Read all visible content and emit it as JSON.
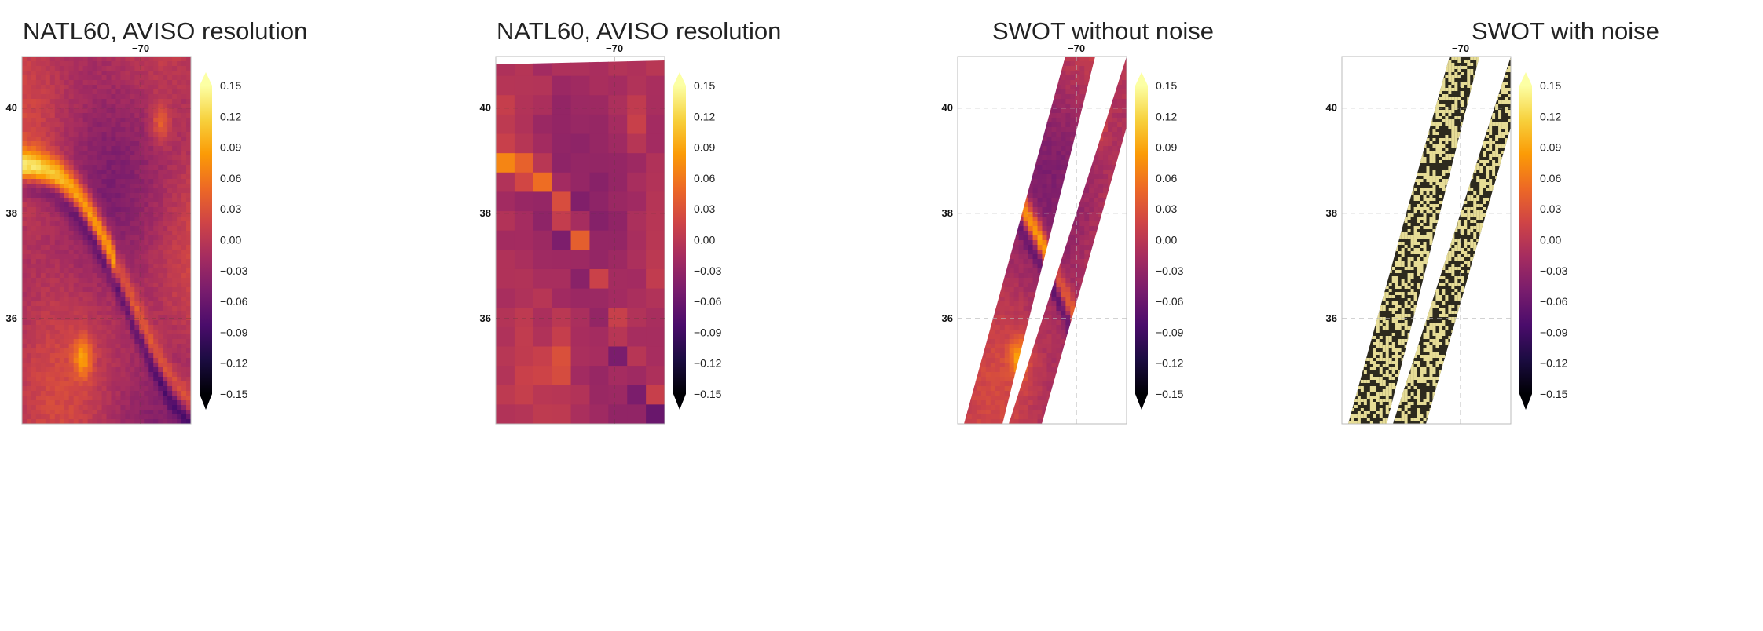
{
  "chart_data": [
    {
      "type": "heatmap",
      "title": "NATL60, AVISO resolution",
      "style": "fine",
      "xticks": [
        "−70"
      ],
      "yticks": [
        "40",
        "38",
        "36"
      ],
      "colorbar": {
        "min": -0.15,
        "max": 0.15,
        "extend": "both",
        "ticks": [
          "0.15",
          "0.12",
          "0.09",
          "0.06",
          "0.03",
          "0.00",
          "−0.03",
          "−0.06",
          "−0.09",
          "−0.12",
          "−0.15"
        ]
      }
    },
    {
      "type": "heatmap",
      "title": "NATL60, AVISO resolution",
      "style": "coarse",
      "xticks": [
        "−70"
      ],
      "yticks": [
        "40",
        "38",
        "36"
      ],
      "colorbar": {
        "min": -0.15,
        "max": 0.15,
        "extend": "both",
        "ticks": [
          "0.15",
          "0.12",
          "0.09",
          "0.06",
          "0.03",
          "0.00",
          "−0.03",
          "−0.06",
          "−0.09",
          "−0.12",
          "−0.15"
        ]
      }
    },
    {
      "type": "heatmap",
      "title": "SWOT without noise",
      "style": "swath",
      "xticks": [
        "−70"
      ],
      "yticks": [
        "40",
        "38",
        "36"
      ],
      "colorbar": {
        "min": -0.15,
        "max": 0.15,
        "extend": "both",
        "ticks": [
          "0.15",
          "0.12",
          "0.09",
          "0.06",
          "0.03",
          "0.00",
          "−0.03",
          "−0.06",
          "−0.09",
          "−0.12",
          "−0.15"
        ]
      }
    },
    {
      "type": "heatmap",
      "title": "SWOT with noise",
      "style": "noise",
      "xticks": [
        "−70"
      ],
      "yticks": [
        "40",
        "38",
        "36"
      ],
      "colorbar": {
        "min": -0.15,
        "max": 0.15,
        "extend": "both",
        "ticks": [
          "0.15",
          "0.12",
          "0.09",
          "0.06",
          "0.03",
          "0.00",
          "−0.03",
          "−0.06",
          "−0.09",
          "−0.12",
          "−0.15"
        ]
      }
    }
  ],
  "colors": {
    "inferno": [
      "#000004",
      "#1b0c41",
      "#4a0c6b",
      "#781c6d",
      "#a52c60",
      "#cf4446",
      "#ed6925",
      "#fb9b06",
      "#f7d13d",
      "#fcffa4"
    ],
    "noise_dark": "#2d2a1e",
    "noise_light": "#e6dc96",
    "grid": "#b8b8b8",
    "frame": "#bbbbbb"
  }
}
